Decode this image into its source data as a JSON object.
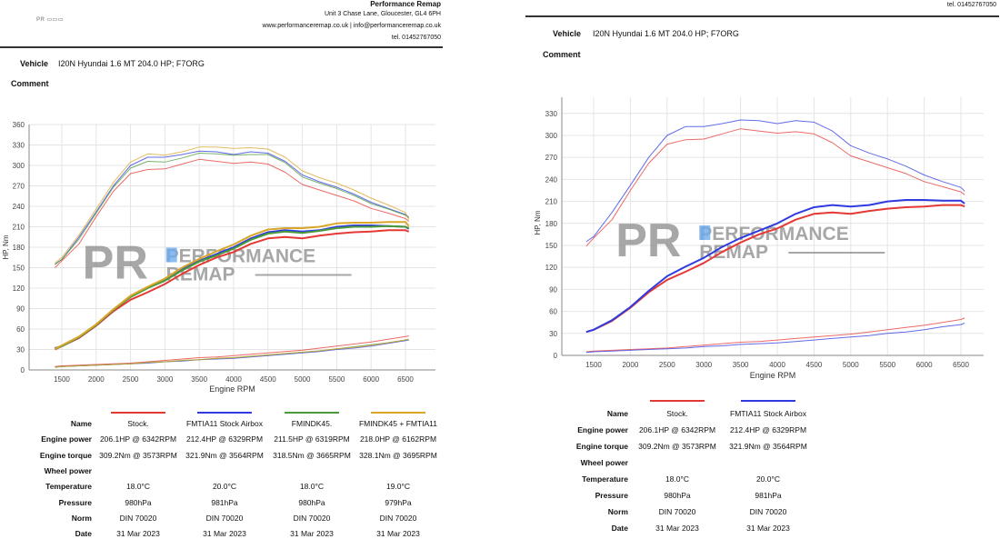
{
  "left": {
    "company": "Performance Remap",
    "address": "Unit 3 Chase Lane, Gloucester, GL4 6PH",
    "web": "www.performanceremap.co.uk | info@performanceremap.co.uk",
    "tel": "tel. 01452767050",
    "logo_text": "PR PERFORMANCE REMAP",
    "vehicle_label": "Vehicle",
    "vehicle": "I20N Hyundai 1.6 MT 204.0 HP; F7ORG",
    "comment_label": "Comment"
  },
  "right": {
    "tel": "tel. 01452767050",
    "vehicle_label": "Vehicle",
    "vehicle": "I20N Hyundai 1.6 MT 204.0 HP; F7ORG",
    "comment_label": "Comment"
  },
  "watermark": {
    "pr": "PR",
    "line1": "PERFORMANCE",
    "line2": "REMAP"
  },
  "table_labels": [
    "Name",
    "Engine power",
    "Engine torque",
    "Wheel power",
    "Temperature",
    "Pressure",
    "Norm",
    "Date"
  ],
  "runs": [
    {
      "name": "Stock.",
      "color": "#e53935",
      "power": "206.1HP @ 6342RPM",
      "torque": "309.2Nm @ 3573RPM",
      "wheel": "",
      "temp": "18.0°C",
      "pressure": "980hPa",
      "norm": "DIN 70020",
      "date": "31 Mar 2023"
    },
    {
      "name": "FMTIA11 Stock Airbox",
      "color": "#2f3be0",
      "power": "212.4HP @ 6329RPM",
      "torque": "321.9Nm @ 3564RPM",
      "wheel": "",
      "temp": "20.0°C",
      "pressure": "981hPa",
      "norm": "DIN 70020",
      "date": "31 Mar 2023"
    },
    {
      "name": "FMINDK45.",
      "color": "#4a9a3a",
      "power": "211.5HP @ 6319RPM",
      "torque": "318.5Nm @ 3665RPM",
      "wheel": "",
      "temp": "18.0°C",
      "pressure": "980hPa",
      "norm": "DIN 70020",
      "date": "31 Mar 2023"
    },
    {
      "name": "FMINDK45 + FMTIA11",
      "color": "#d9a62a",
      "power": "218.0HP @ 6162RPM",
      "torque": "328.1Nm @ 3695RPM",
      "wheel": "",
      "temp": "19.0°C",
      "pressure": "979hPa",
      "norm": "DIN 70020",
      "date": "31 Mar 2023"
    }
  ],
  "chart_data": [
    {
      "type": "line",
      "title": "",
      "xlabel": "Engine RPM",
      "ylabel": "HP, Nm",
      "xlim": [
        1024,
        6937
      ],
      "ylim": [
        0,
        360
      ],
      "xticks": [
        1500,
        2000,
        2500,
        3000,
        3500,
        4000,
        4500,
        5000,
        5500,
        6000,
        6500
      ],
      "yticks": [
        0,
        30,
        60,
        90,
        120,
        150,
        180,
        210,
        240,
        270,
        300,
        330,
        360
      ],
      "grid": true,
      "runs": [
        0,
        1,
        2,
        3
      ],
      "x": [
        1400,
        1500,
        1750,
        2000,
        2250,
        2500,
        2750,
        3000,
        3250,
        3500,
        3750,
        4000,
        4250,
        4500,
        4750,
        5000,
        5250,
        5500,
        5750,
        6000,
        6250,
        6500,
        6550
      ],
      "series": [
        {
          "name": "Stock. torque",
          "run": 0,
          "values": [
            150,
            160,
            185,
            225,
            262,
            288,
            294,
            295,
            302,
            309,
            306,
            303,
            305,
            302,
            290,
            272,
            264,
            256,
            248,
            237,
            230,
            222,
            218
          ]
        },
        {
          "name": "Stock. power",
          "run": 0,
          "values": [
            30,
            35,
            47,
            65,
            86,
            103,
            114,
            126,
            141,
            154,
            165,
            173,
            185,
            193,
            195,
            193,
            197,
            200,
            202,
            203,
            205,
            205,
            203
          ]
        },
        {
          "name": "Stock. loss",
          "run": 0,
          "values": [
            5,
            6,
            7,
            8,
            9,
            10,
            12,
            14,
            16,
            18,
            19,
            21,
            23,
            25,
            27,
            29,
            32,
            35,
            38,
            41,
            45,
            49,
            50
          ]
        },
        {
          "name": "FMTIA11 Stock Airbox torque",
          "run": 1,
          "values": [
            155,
            162,
            195,
            232,
            270,
            300,
            312,
            312,
            316,
            321,
            320,
            316,
            320,
            318,
            306,
            286,
            276,
            268,
            258,
            246,
            237,
            228,
            224
          ]
        },
        {
          "name": "FMTIA11 Stock Airbox power",
          "run": 1,
          "values": [
            32,
            35,
            48,
            66,
            88,
            108,
            121,
            133,
            148,
            160,
            170,
            180,
            193,
            202,
            205,
            203,
            205,
            210,
            212,
            212,
            211,
            210,
            207
          ]
        },
        {
          "name": "FMTIA11 Stock Airbox loss",
          "run": 1,
          "values": [
            4,
            5,
            6,
            7,
            8,
            9,
            10,
            12,
            13,
            15,
            16,
            17,
            19,
            21,
            23,
            25,
            27,
            30,
            32,
            35,
            39,
            43,
            44
          ]
        },
        {
          "name": "FMINDK45. torque",
          "run": 2,
          "values": [
            155,
            162,
            192,
            230,
            268,
            296,
            306,
            305,
            311,
            318,
            317,
            315,
            316,
            316,
            304,
            283,
            274,
            266,
            256,
            244,
            236,
            227,
            223
          ]
        },
        {
          "name": "FMINDK45. power",
          "run": 2,
          "values": [
            31,
            35,
            48,
            66,
            88,
            107,
            120,
            131,
            146,
            159,
            168,
            178,
            191,
            200,
            203,
            201,
            204,
            208,
            210,
            210,
            211,
            210,
            208
          ]
        },
        {
          "name": "FMINDK45. loss",
          "run": 2,
          "values": [
            4,
            5,
            6,
            7,
            8,
            9,
            11,
            12,
            14,
            15,
            17,
            18,
            20,
            22,
            24,
            26,
            28,
            31,
            34,
            37,
            40,
            44,
            45
          ]
        },
        {
          "name": "FMINDK45 + FMTIA11 torque",
          "run": 3,
          "values": [
            157,
            165,
            198,
            236,
            275,
            305,
            317,
            315,
            320,
            327,
            327,
            325,
            326,
            324,
            312,
            292,
            282,
            274,
            264,
            252,
            242,
            231,
            220
          ]
        },
        {
          "name": "FMINDK45 + FMTIA11 power",
          "run": 3,
          "values": [
            31,
            36,
            49,
            67,
            89,
            109,
            122,
            134,
            150,
            163,
            174,
            184,
            197,
            206,
            208,
            208,
            210,
            215,
            216,
            216,
            217,
            217,
            211
          ]
        },
        {
          "name": "FMINDK45 + FMTIA11 loss",
          "run": 3,
          "values": [
            4,
            5,
            6,
            7,
            8,
            9,
            11,
            12,
            14,
            15,
            17,
            18,
            20,
            22,
            24,
            26,
            28,
            31,
            33,
            36,
            40,
            44,
            45
          ]
        }
      ]
    },
    {
      "type": "line",
      "title": "",
      "xlabel": "Engine RPM",
      "ylabel": "HP, Nm",
      "xlim": [
        1067,
        6809
      ],
      "ylim": [
        0,
        352
      ],
      "xticks": [
        1500,
        2000,
        2500,
        3000,
        3500,
        4000,
        4500,
        5000,
        5500,
        6000,
        6500
      ],
      "yticks": [
        0,
        30,
        60,
        90,
        120,
        150,
        180,
        210,
        240,
        270,
        300,
        330
      ],
      "grid": true,
      "runs": [
        0,
        1
      ],
      "x": [
        1400,
        1500,
        1750,
        2000,
        2250,
        2500,
        2750,
        3000,
        3250,
        3500,
        3750,
        4000,
        4250,
        4500,
        4750,
        5000,
        5250,
        5500,
        5750,
        6000,
        6250,
        6500,
        6550
      ],
      "series": [
        {
          "name": "Stock. torque",
          "run": 0,
          "values": [
            149,
            160,
            185,
            225,
            262,
            288,
            294,
            295,
            302,
            309,
            306,
            303,
            305,
            302,
            290,
            272,
            264,
            256,
            248,
            237,
            230,
            223,
            219
          ]
        },
        {
          "name": "Stock. power",
          "run": 0,
          "values": [
            32,
            35,
            47,
            65,
            86,
            103,
            114,
            126,
            141,
            154,
            165,
            173,
            185,
            193,
            195,
            193,
            197,
            200,
            202,
            203,
            205,
            205,
            203
          ]
        },
        {
          "name": "Stock. loss",
          "run": 0,
          "values": [
            5,
            6,
            7,
            8,
            9,
            10,
            12,
            14,
            16,
            18,
            19,
            21,
            23,
            25,
            27,
            29,
            32,
            35,
            38,
            41,
            45,
            49,
            51
          ]
        },
        {
          "name": "FMTIA11 Stock Airbox torque",
          "run": 1,
          "values": [
            155,
            162,
            195,
            232,
            270,
            300,
            312,
            312,
            316,
            321,
            320,
            316,
            320,
            318,
            306,
            286,
            276,
            268,
            258,
            246,
            237,
            229,
            224
          ]
        },
        {
          "name": "FMTIA11 Stock Airbox power",
          "run": 1,
          "values": [
            32,
            35,
            48,
            66,
            88,
            108,
            121,
            133,
            148,
            160,
            170,
            180,
            193,
            202,
            205,
            203,
            205,
            210,
            212,
            212,
            211,
            211,
            207
          ]
        },
        {
          "name": "FMTIA11 Stock Airbox loss",
          "run": 1,
          "values": [
            4,
            5,
            6,
            7,
            8,
            9,
            10,
            12,
            13,
            15,
            16,
            17,
            19,
            21,
            23,
            25,
            27,
            30,
            32,
            35,
            39,
            42,
            44
          ]
        }
      ]
    }
  ]
}
